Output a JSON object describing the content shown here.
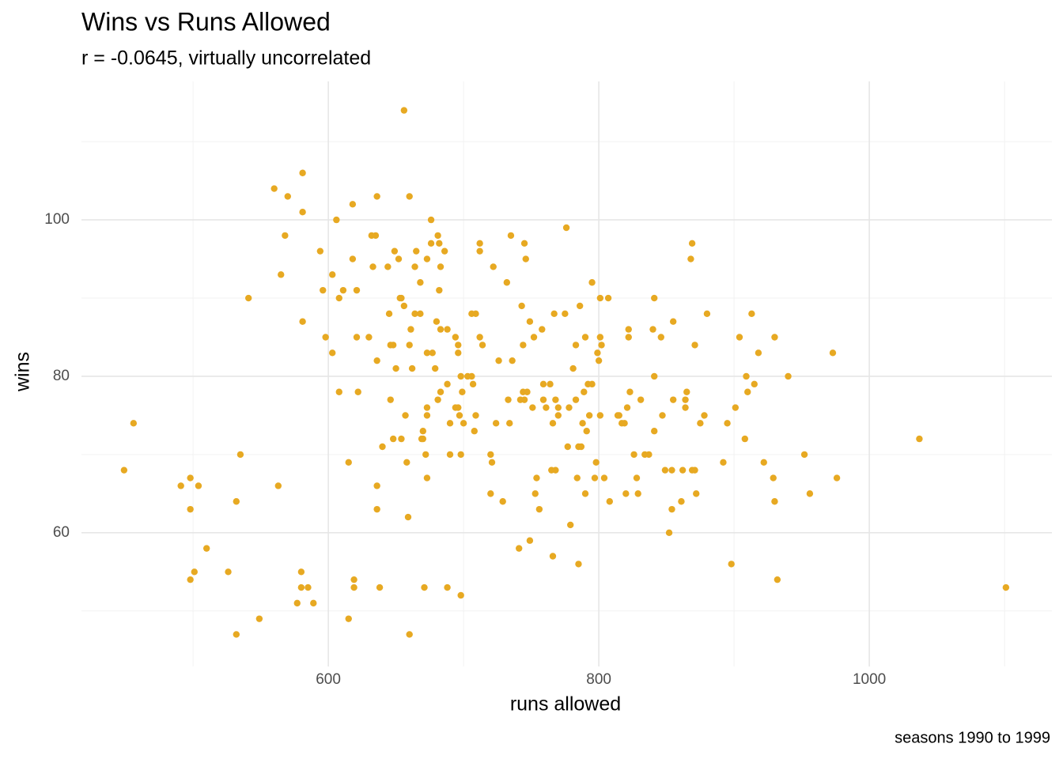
{
  "chart_data": {
    "type": "scatter",
    "title": "Wins vs Runs Allowed",
    "subtitle": "r = -0.0645, virtually uncorrelated",
    "caption": "seasons 1990 to 1999",
    "x_label": "runs allowed",
    "y_label": "wins",
    "color": "#E7A922",
    "grid": true,
    "xlim": [
      417.5,
      1135
    ],
    "ylim": [
      42.9,
      117.7
    ],
    "xticks": [
      600,
      800,
      1000
    ],
    "yticks": [
      60,
      80,
      100
    ],
    "x_minor_grid": [
      500,
      700,
      900,
      1100
    ],
    "y_minor_grid": [
      50,
      70,
      90,
      110
    ],
    "x": [
      449,
      456,
      491,
      498,
      498,
      504,
      501,
      498,
      510,
      526,
      532,
      535,
      532,
      549,
      541,
      560,
      570,
      565,
      568,
      563,
      581,
      581,
      581,
      580,
      577,
      580,
      585,
      589,
      594,
      596,
      598,
      603,
      603,
      606,
      608,
      611,
      608,
      615,
      615,
      618,
      618,
      621,
      621,
      622,
      619,
      619,
      630,
      633,
      632,
      635,
      636,
      636,
      636,
      636,
      638,
      640,
      644,
      645,
      646,
      646,
      648,
      649,
      650,
      648,
      652,
      653,
      654,
      654,
      656,
      657,
      656,
      658,
      659,
      660,
      660,
      660,
      661,
      662,
      664,
      664,
      665,
      668,
      668,
      670,
      669,
      670,
      671,
      672,
      673,
      673,
      673,
      673,
      673,
      676,
      676,
      677,
      679,
      681,
      680,
      682,
      683,
      682,
      681,
      683,
      683,
      686,
      688,
      688,
      688,
      690,
      690,
      694,
      696,
      696,
      694,
      696,
      697,
      698,
      698,
      699,
      698,
      700,
      703,
      706,
      707,
      706,
      709,
      708,
      709,
      712,
      712,
      712,
      714,
      722,
      720,
      721,
      720,
      724,
      726,
      729,
      732,
      733,
      734,
      735,
      736,
      742,
      741,
      743,
      744,
      745,
      746,
      744,
      747,
      745,
      749,
      749,
      751,
      752,
      753,
      754,
      756,
      758,
      759,
      759,
      761,
      764,
      765,
      766,
      766,
      767,
      768,
      768,
      770,
      770,
      775,
      776,
      777,
      778,
      779,
      781,
      783,
      783,
      784,
      785,
      785,
      786,
      787,
      788,
      789,
      790,
      790,
      791,
      792,
      793,
      795,
      795,
      797,
      798,
      799,
      800,
      801,
      801,
      802,
      801,
      804,
      807,
      808,
      814,
      815,
      817,
      819,
      820,
      822,
      822,
      823,
      821,
      826,
      828,
      829,
      831,
      834,
      837,
      840,
      841,
      841,
      841,
      846,
      847,
      849,
      852,
      854,
      854,
      855,
      855,
      861,
      862,
      864,
      864,
      865,
      868,
      869,
      869,
      871,
      871,
      872,
      875,
      878,
      880,
      892,
      895,
      898,
      901,
      904,
      908,
      909,
      910,
      913,
      915,
      918,
      922,
      929,
      930,
      930,
      932,
      940,
      952,
      956,
      973,
      976,
      1037,
      1101
    ],
    "values": [
      68,
      74,
      66,
      67,
      63,
      66,
      55,
      54,
      58,
      55,
      64,
      70,
      47,
      49,
      90,
      104,
      103,
      93,
      98,
      66,
      106,
      101,
      87,
      55,
      51,
      53,
      53,
      51,
      96,
      91,
      85,
      93,
      83,
      100,
      90,
      91,
      78,
      69,
      49,
      95,
      102,
      91,
      85,
      78,
      54,
      53,
      85,
      94,
      98,
      98,
      103,
      82,
      66,
      63,
      53,
      71,
      94,
      88,
      84,
      77,
      72,
      96,
      81,
      84,
      95,
      90,
      90,
      72,
      89,
      75,
      114,
      69,
      62,
      47,
      103,
      84,
      86,
      81,
      94,
      88,
      96,
      88,
      92,
      73,
      72,
      72,
      53,
      70,
      95,
      75,
      67,
      76,
      83,
      97,
      100,
      83,
      81,
      98,
      87,
      97,
      94,
      91,
      77,
      78,
      86,
      96,
      79,
      86,
      53,
      74,
      70,
      85,
      84,
      83,
      76,
      76,
      75,
      52,
      70,
      78,
      80,
      74,
      80,
      80,
      79,
      88,
      88,
      73,
      75,
      97,
      96,
      85,
      84,
      94,
      70,
      69,
      65,
      74,
      82,
      64,
      92,
      77,
      74,
      98,
      82,
      77,
      58,
      89,
      84,
      97,
      95,
      78,
      78,
      77,
      59,
      87,
      76,
      85,
      65,
      67,
      63,
      86,
      77,
      79,
      76,
      79,
      68,
      57,
      74,
      88,
      77,
      68,
      76,
      75,
      88,
      99,
      71,
      76,
      61,
      81,
      77,
      84,
      67,
      56,
      71,
      89,
      71,
      74,
      78,
      85,
      65,
      73,
      79,
      75,
      92,
      79,
      67,
      69,
      83,
      82,
      90,
      85,
      84,
      75,
      67,
      90,
      64,
      75,
      75,
      74,
      74,
      65,
      85,
      86,
      78,
      76,
      70,
      67,
      65,
      77,
      70,
      70,
      86,
      73,
      90,
      80,
      85,
      75,
      68,
      60,
      63,
      68,
      77,
      87,
      64,
      68,
      77,
      76,
      78,
      95,
      97,
      68,
      68,
      84,
      65,
      74,
      75,
      88,
      69,
      74,
      56,
      76,
      85,
      72,
      80,
      78,
      88,
      79,
      83,
      69,
      67,
      85,
      64,
      54,
      80,
      70,
      65,
      83,
      67,
      72,
      53
    ]
  }
}
